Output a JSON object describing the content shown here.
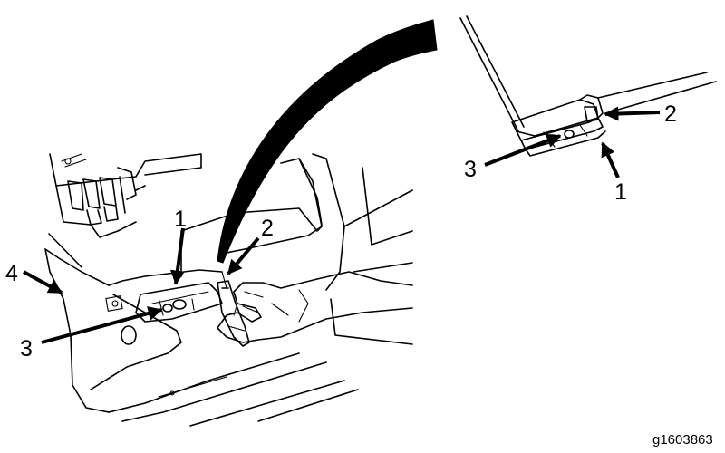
{
  "callouts": {
    "main_1": "1",
    "main_2": "2",
    "main_3": "3",
    "main_4": "4",
    "detail_1": "1",
    "detail_2": "2",
    "detail_3": "3"
  },
  "figure_id": "g1603863",
  "colors": {
    "ink": "#000000",
    "background": "#ffffff"
  }
}
